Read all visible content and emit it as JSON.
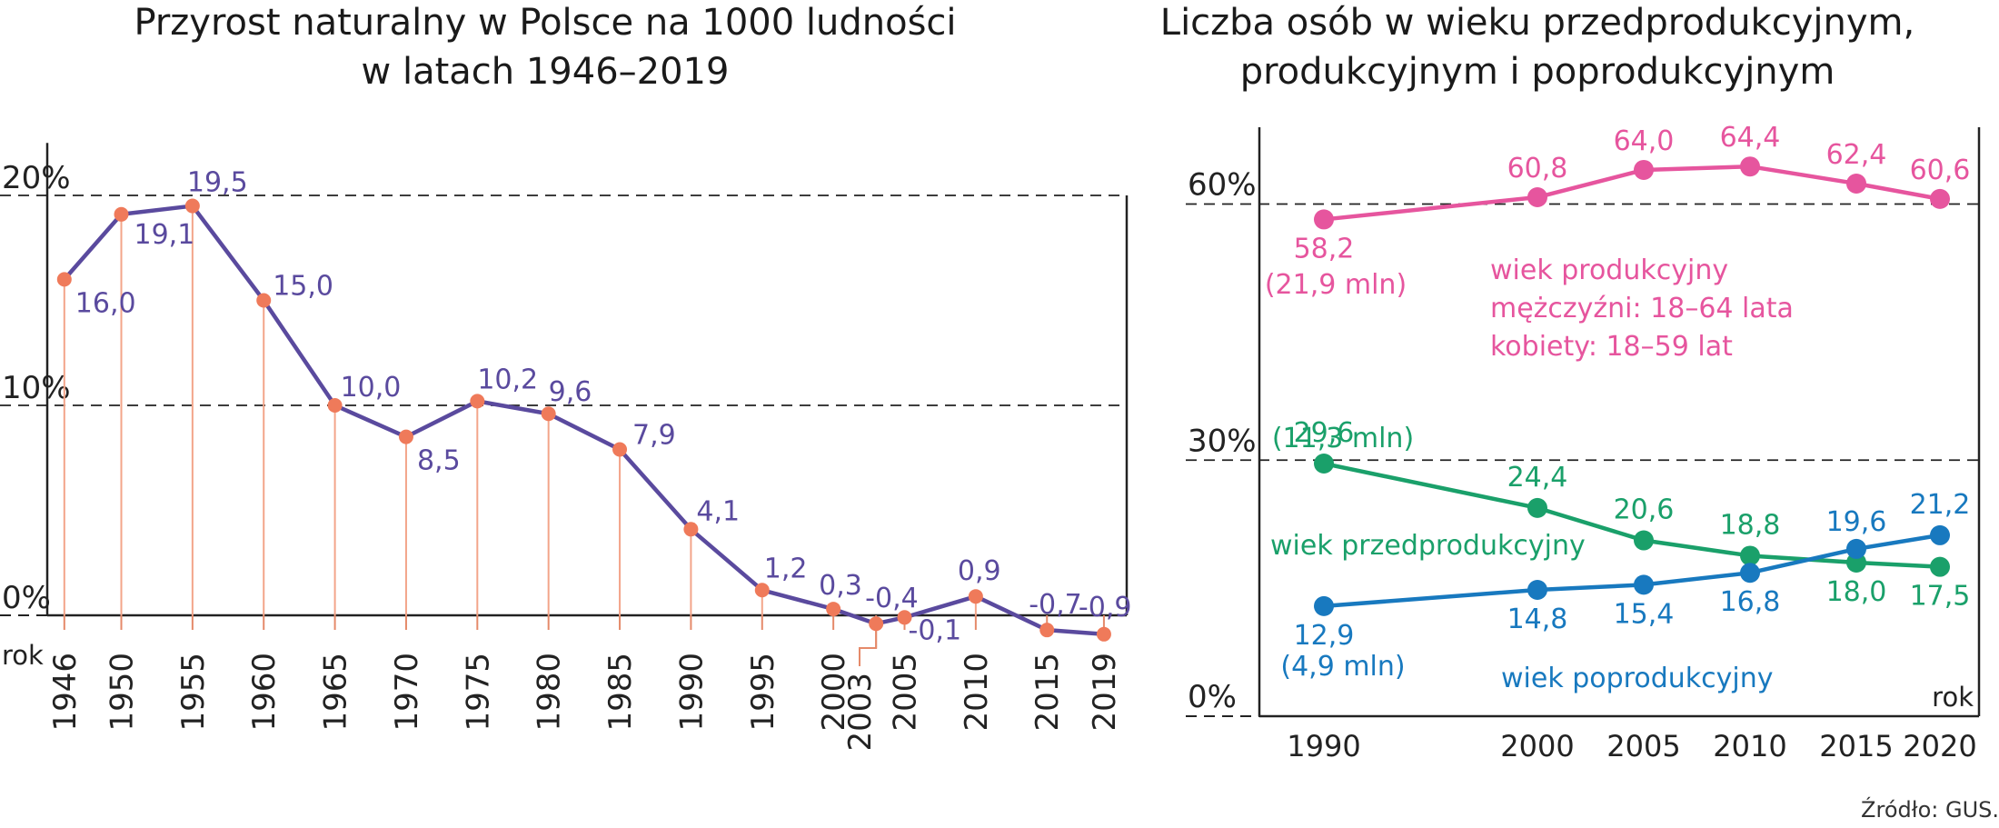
{
  "chart_data": [
    {
      "type": "line",
      "title_lines": [
        "Przyrost naturalny w Polsce na 1000 ludności",
        "w latach 1946–2019"
      ],
      "ylabel_ticks": [
        "0%",
        "10%",
        "20%"
      ],
      "xlabel": "rok",
      "ylim": [
        -1,
        23
      ],
      "x": [
        1946,
        1950,
        1955,
        1960,
        1965,
        1970,
        1975,
        1980,
        1985,
        1990,
        1995,
        2000,
        2003,
        2005,
        2010,
        2015,
        2019
      ],
      "x_labels": [
        "1946",
        "1950",
        "1955",
        "1960",
        "1965",
        "1970",
        "1975",
        "1980",
        "1985",
        "1990",
        "1995",
        "2000",
        "2003",
        "2005",
        "2010",
        "2015",
        "2019"
      ],
      "values": [
        16.0,
        19.1,
        19.5,
        15.0,
        10.0,
        8.5,
        10.2,
        9.6,
        7.9,
        4.1,
        1.2,
        0.3,
        -0.4,
        -0.1,
        0.9,
        -0.7,
        -0.9
      ],
      "value_labels": [
        "16,0",
        "19,1",
        "19,5",
        "15,0",
        "10,0",
        "8,5",
        "10,2",
        "9,6",
        "7,9",
        "4,1",
        "1,2",
        "0,3",
        "-0,4",
        "-0,1",
        "0,9",
        "-0,7",
        "-0,9"
      ],
      "gridlines": [
        0,
        10,
        20
      ],
      "colors": {
        "line": "#5a4a9e",
        "marker": "#ef7a5a",
        "drop": "#f3a58a"
      }
    },
    {
      "type": "line",
      "title_lines": [
        "Liczba osób w wieku przedprodukcyjnym,",
        "produkcyjnym i poprodukcyjnym"
      ],
      "ylabel_ticks": [
        "0%",
        "30%",
        "60%"
      ],
      "xlabel": "rok",
      "ylim": [
        0,
        69
      ],
      "x": [
        1990,
        2000,
        2005,
        2010,
        2015,
        2020
      ],
      "x_labels": [
        "1990",
        "2000",
        "2005",
        "2010",
        "2015",
        "2020"
      ],
      "gridlines": [
        0,
        30,
        60
      ],
      "series": [
        {
          "name": "wiek produkcyjny",
          "values": [
            58.2,
            60.8,
            64.0,
            64.4,
            62.4,
            60.6
          ],
          "value_labels": [
            "58,2",
            "60,8",
            "64,0",
            "64,4",
            "62,4",
            "60,6"
          ],
          "note": "(21,9 mln)",
          "legend_lines": [
            "wiek produkcyjny",
            "mężczyźni: 18–64 lata",
            "kobiety: 18–59 lat"
          ],
          "color": "#e6559e"
        },
        {
          "name": "wiek przedprodukcyjny",
          "values": [
            29.6,
            24.4,
            20.6,
            18.8,
            18.0,
            17.5
          ],
          "value_labels": [
            "29,6",
            "24,4",
            "20,6",
            "18,8",
            "18,0",
            "17,5"
          ],
          "note": "(11,3 mln)",
          "legend_lines": [
            "wiek przedprodukcyjny"
          ],
          "color": "#1aa06a"
        },
        {
          "name": "wiek poprodukcyjny",
          "values": [
            12.9,
            14.8,
            15.4,
            16.8,
            19.6,
            21.2
          ],
          "value_labels": [
            "12,9",
            "14,8",
            "15,4",
            "16,8",
            "19,6",
            "21,2"
          ],
          "note": "(4,9 mln)",
          "legend_lines": [
            "wiek poprodukcyjny"
          ],
          "color": "#1879bf"
        }
      ]
    }
  ],
  "source": "Źródło: GUS."
}
